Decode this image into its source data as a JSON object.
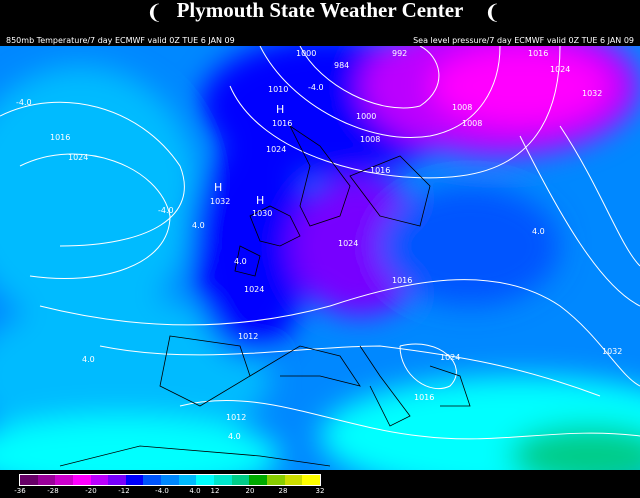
{
  "header": {
    "title": "Plymouth State Weather Center",
    "left_caption": "850mb Temperature/7 day ECMWF valid 0Z TUE 6 JAN 09",
    "right_caption": "Sea level pressure/7 day ECMWF valid 0Z TUE 6 JAN 09",
    "logo_icon": "swirl-icon"
  },
  "map": {
    "pressure_labels": [
      "1000",
      "984",
      "992",
      "1016",
      "1024",
      "1032",
      "1010",
      "1000",
      "1008",
      "1016",
      "1024",
      "1008",
      "1008",
      "1016",
      "1024",
      "1032",
      "1030",
      "1024",
      "1016",
      "1016",
      "1012",
      "1024",
      "1032",
      "1024",
      "1016",
      "1012"
    ],
    "temperature_labels": [
      "-4.0",
      "-4.0",
      "4.0",
      "-4.0",
      "4.0",
      "4.0",
      "4.0",
      "4.0"
    ],
    "high_markers": [
      "H",
      "H",
      "H"
    ]
  },
  "colorbar": {
    "colors": [
      "#660066",
      "#990099",
      "#cc00cc",
      "#ff00ff",
      "#bb00ff",
      "#7700ff",
      "#0000ff",
      "#0055ff",
      "#0088ff",
      "#00bbff",
      "#00ffff",
      "#00e6cc",
      "#00cc88",
      "#00aa00",
      "#88cc00",
      "#ccdd00",
      "#ffff00"
    ],
    "labels": [
      "-36",
      "-28",
      "-20",
      "-12",
      "-4.0",
      "4.0",
      "12",
      "20",
      "28",
      "32"
    ]
  }
}
